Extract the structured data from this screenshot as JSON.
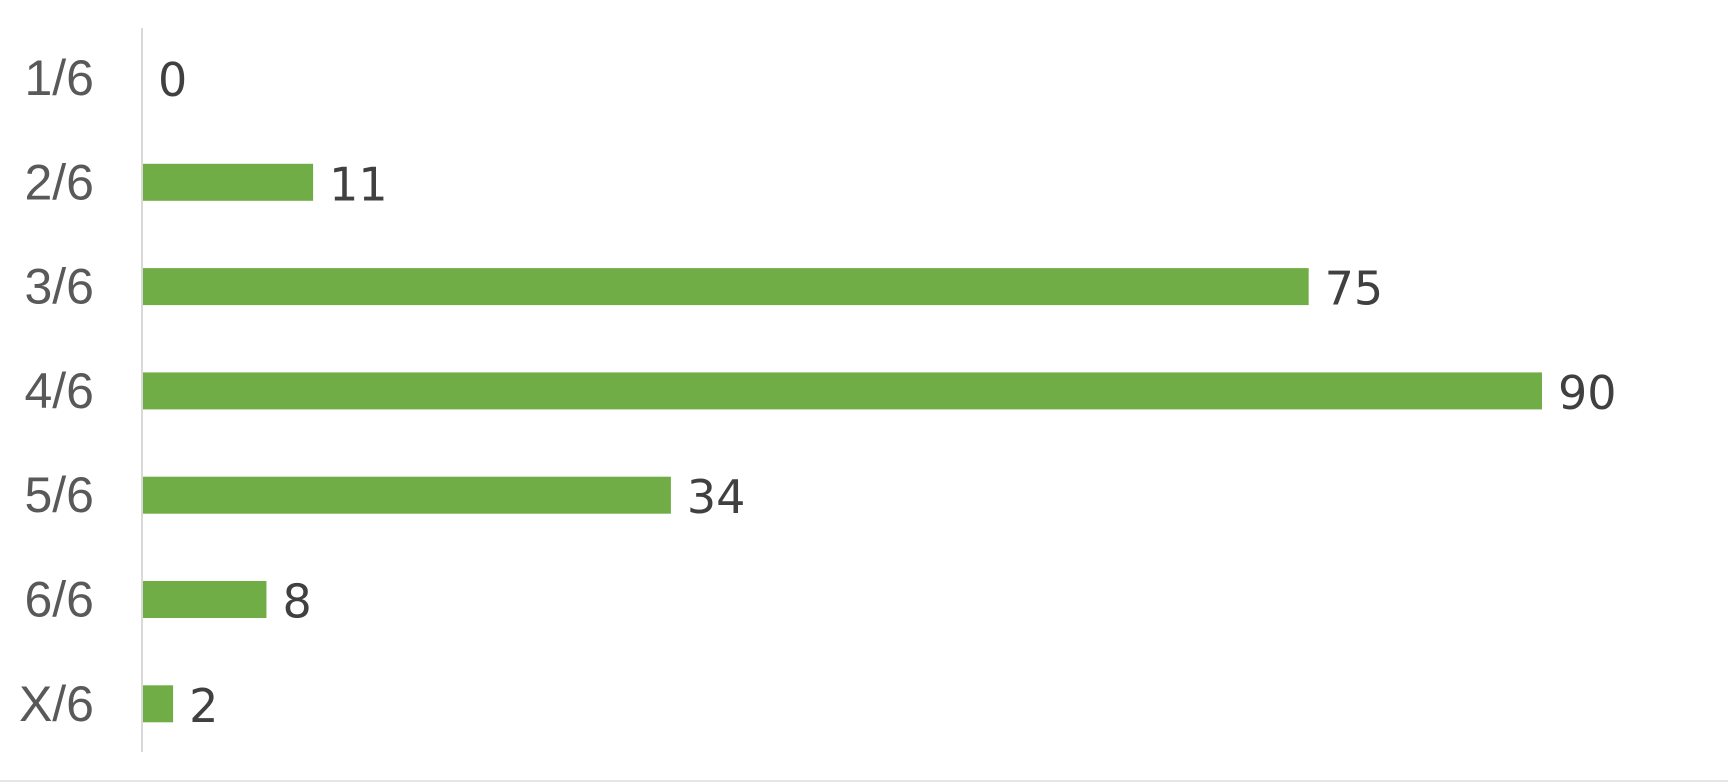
{
  "chart_data": {
    "type": "bar",
    "orientation": "horizontal",
    "categories": [
      "1/6",
      "2/6",
      "3/6",
      "4/6",
      "5/6",
      "6/6",
      "X/6"
    ],
    "values": [
      0,
      11,
      75,
      90,
      34,
      8,
      2
    ],
    "title": "",
    "xlabel": "",
    "ylabel": "",
    "xlim": [
      0,
      90
    ],
    "grid": false,
    "legend": "none",
    "data_labels": true,
    "colors": {
      "bar": "#70ad47",
      "axis": "#d9d9d9",
      "category_text": "#595959",
      "value_text": "#404040"
    }
  }
}
